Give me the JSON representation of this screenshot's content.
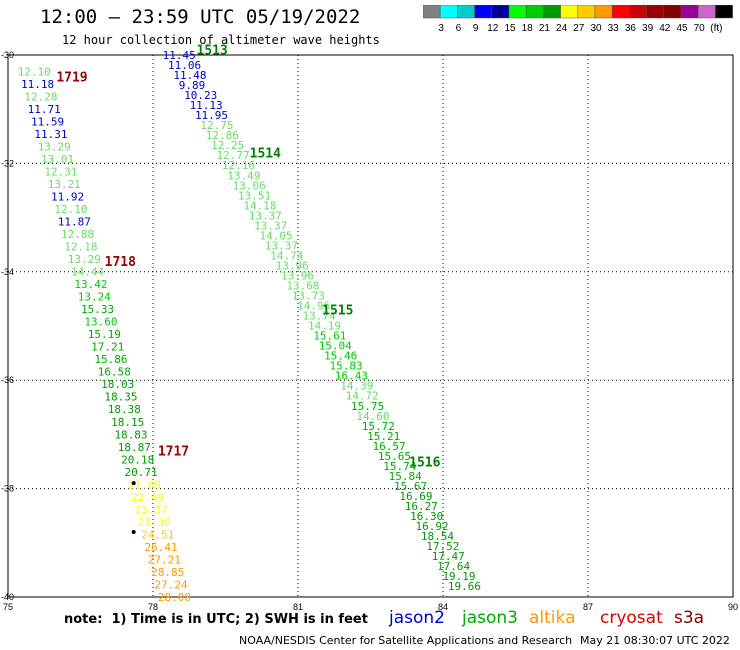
{
  "title": "12:00 — 23:59 UTC 05/19/2022",
  "subtitle": "12 hour collection of altimeter wave heights",
  "note": "note:  1) Time is in UTC; 2) SWH is in feet",
  "credit": "NOAA/NESDIS Center for Satellite Applications and Research",
  "timestamp": "May 21 08:30:07 UTC 2022",
  "satellites": [
    {
      "name": "jason2",
      "color": "#0000cc"
    },
    {
      "name": "jason3",
      "color": "#00aa00"
    },
    {
      "name": "altika",
      "color": "#ff9900"
    },
    {
      "name": "cryosat",
      "color": "#dd0000"
    },
    {
      "name": "s3a",
      "color": "#880000"
    }
  ],
  "colorbar": {
    "unit": "(ft)",
    "colors": [
      "#808080",
      "#00ffff",
      "#00cccc",
      "#0000ff",
      "#000099",
      "#00ff00",
      "#00cc00",
      "#009900",
      "#ffff00",
      "#ffcc00",
      "#ff9900",
      "#ff0000",
      "#cc0000",
      "#990000",
      "#800000",
      "#990099",
      "#cc66cc",
      "#000000"
    ],
    "labels": [
      "3",
      "6",
      "9",
      "12",
      "15",
      "18",
      "21",
      "24",
      "27",
      "30",
      "33",
      "36",
      "39",
      "42",
      "45",
      "70",
      "(ft)"
    ]
  },
  "chart_data": {
    "type": "scatter",
    "xlim": [
      75,
      90
    ],
    "ylim": [
      -40,
      -30
    ],
    "x_ticks": [
      75,
      78,
      81,
      84,
      87,
      90
    ],
    "y_ticks": [
      -30,
      -32,
      -34,
      -36,
      -38,
      -40
    ],
    "grid": true,
    "pass_labels": [
      {
        "label": "1719",
        "lon": 76.0,
        "lat": -30.4,
        "color": "#990000"
      },
      {
        "label": "1718",
        "lon": 77.0,
        "lat": -33.8,
        "color": "#990000"
      },
      {
        "label": "1717",
        "lon": 78.1,
        "lat": -37.3,
        "color": "#990000"
      },
      {
        "label": "1513",
        "lon": 78.9,
        "lat": -29.9,
        "color": "#008000"
      },
      {
        "label": "1514",
        "lon": 80.0,
        "lat": -31.8,
        "color": "#008000"
      },
      {
        "label": "1515",
        "lon": 81.5,
        "lat": -34.7,
        "color": "#008000"
      },
      {
        "label": "1516",
        "lon": 83.3,
        "lat": -37.5,
        "color": "#008000"
      }
    ],
    "markers": [
      {
        "lon": 77.6,
        "lat": -37.9
      },
      {
        "lon": 77.6,
        "lat": -38.8
      }
    ],
    "tracks": [
      {
        "name": "1719",
        "lon_start": 75.2,
        "lat_start": -30.3,
        "lon_end": 78.1,
        "lat_end": -40.0,
        "values": [
          "12.10",
          "11.18",
          "12.28",
          "11.71",
          "11.59",
          "11.31",
          "13.29",
          "13.01",
          "12.31",
          "13.21",
          "11.92",
          "12.10",
          "11.87",
          "12.88",
          "12.18",
          "13.29",
          "14.44",
          "13.42",
          "13.24",
          "15.33",
          "13.60",
          "15.19",
          "17.21",
          "15.86",
          "16.58",
          "18.03",
          "18.35",
          "18.38",
          "18.15",
          "18.83",
          "18.87",
          "20.18",
          "20.71",
          "21.88",
          "22.49",
          "23.37",
          "21.36",
          "24.51",
          "26.41",
          "27.21",
          "28.85",
          "27.24",
          "28.00"
        ],
        "colors": [
          "#66dd66",
          "#0000cc",
          "#66dd66",
          "#0000cc",
          "#0000cc",
          "#0000cc",
          "#66dd66",
          "#66dd66",
          "#66dd66",
          "#66dd66",
          "#0000cc",
          "#66dd66",
          "#0000cc",
          "#66dd66",
          "#66dd66",
          "#66dd66",
          "#66dd66",
          "#00cc00",
          "#00cc00",
          "#00aa00",
          "#00cc00",
          "#00aa00",
          "#00aa00",
          "#00aa00",
          "#00aa00",
          "#009900",
          "#009900",
          "#009900",
          "#009900",
          "#009900",
          "#009900",
          "#009900",
          "#009900",
          "#ffff00",
          "#ffff00",
          "#ffff00",
          "#ffff00",
          "#ffcc00",
          "#ff9900",
          "#ff9900",
          "#ff9900",
          "#ff9900",
          "#ff9900"
        ]
      },
      {
        "name": "1513-1516",
        "lon_start": 78.2,
        "lat_start": -30.0,
        "lon_end": 84.1,
        "lat_end": -39.8,
        "values": [
          "11.45",
          "11.06",
          "11.48",
          "9.89",
          "10.23",
          "11.13",
          "11.95",
          "12.75",
          "12.86",
          "12.25",
          "12.77",
          "12.16",
          "13.49",
          "13.06",
          "13.51",
          "14.18",
          "13.37",
          "13.37",
          "14.05",
          "13.37",
          "14.74",
          "13.96",
          "13.96",
          "13.68",
          "13.73",
          "14.96",
          "13.74",
          "14.19",
          "15.61",
          "15.04",
          "15.46",
          "15.83",
          "16.43",
          "14.39",
          "14.72",
          "15.75",
          "14.60",
          "15.72",
          "15.21",
          "16.57",
          "15.65",
          "15.74",
          "15.84",
          "15.67",
          "16.69",
          "16.27",
          "16.30",
          "16.92",
          "18.54",
          "17.52",
          "17.47",
          "17.64",
          "19.19",
          "19.66"
        ],
        "colors": [
          "#0000cc",
          "#0000cc",
          "#0000cc",
          "#0000cc",
          "#0000cc",
          "#0000cc",
          "#0000cc",
          "#66dd66",
          "#66dd66",
          "#66dd66",
          "#66dd66",
          "#66dd66",
          "#66dd66",
          "#66dd66",
          "#66dd66",
          "#66dd66",
          "#66dd66",
          "#66dd66",
          "#66dd66",
          "#66dd66",
          "#66dd66",
          "#66dd66",
          "#66dd66",
          "#66dd66",
          "#66dd66",
          "#66dd66",
          "#66dd66",
          "#66dd66",
          "#00cc00",
          "#00cc00",
          "#00cc00",
          "#00cc00",
          "#00cc00",
          "#66dd66",
          "#66dd66",
          "#00aa00",
          "#66dd66",
          "#00aa00",
          "#00aa00",
          "#00aa00",
          "#00aa00",
          "#00aa00",
          "#00aa00",
          "#00aa00",
          "#009900",
          "#009900",
          "#009900",
          "#009900",
          "#009900",
          "#009900",
          "#009900",
          "#009900",
          "#009900",
          "#009900"
        ]
      }
    ]
  }
}
